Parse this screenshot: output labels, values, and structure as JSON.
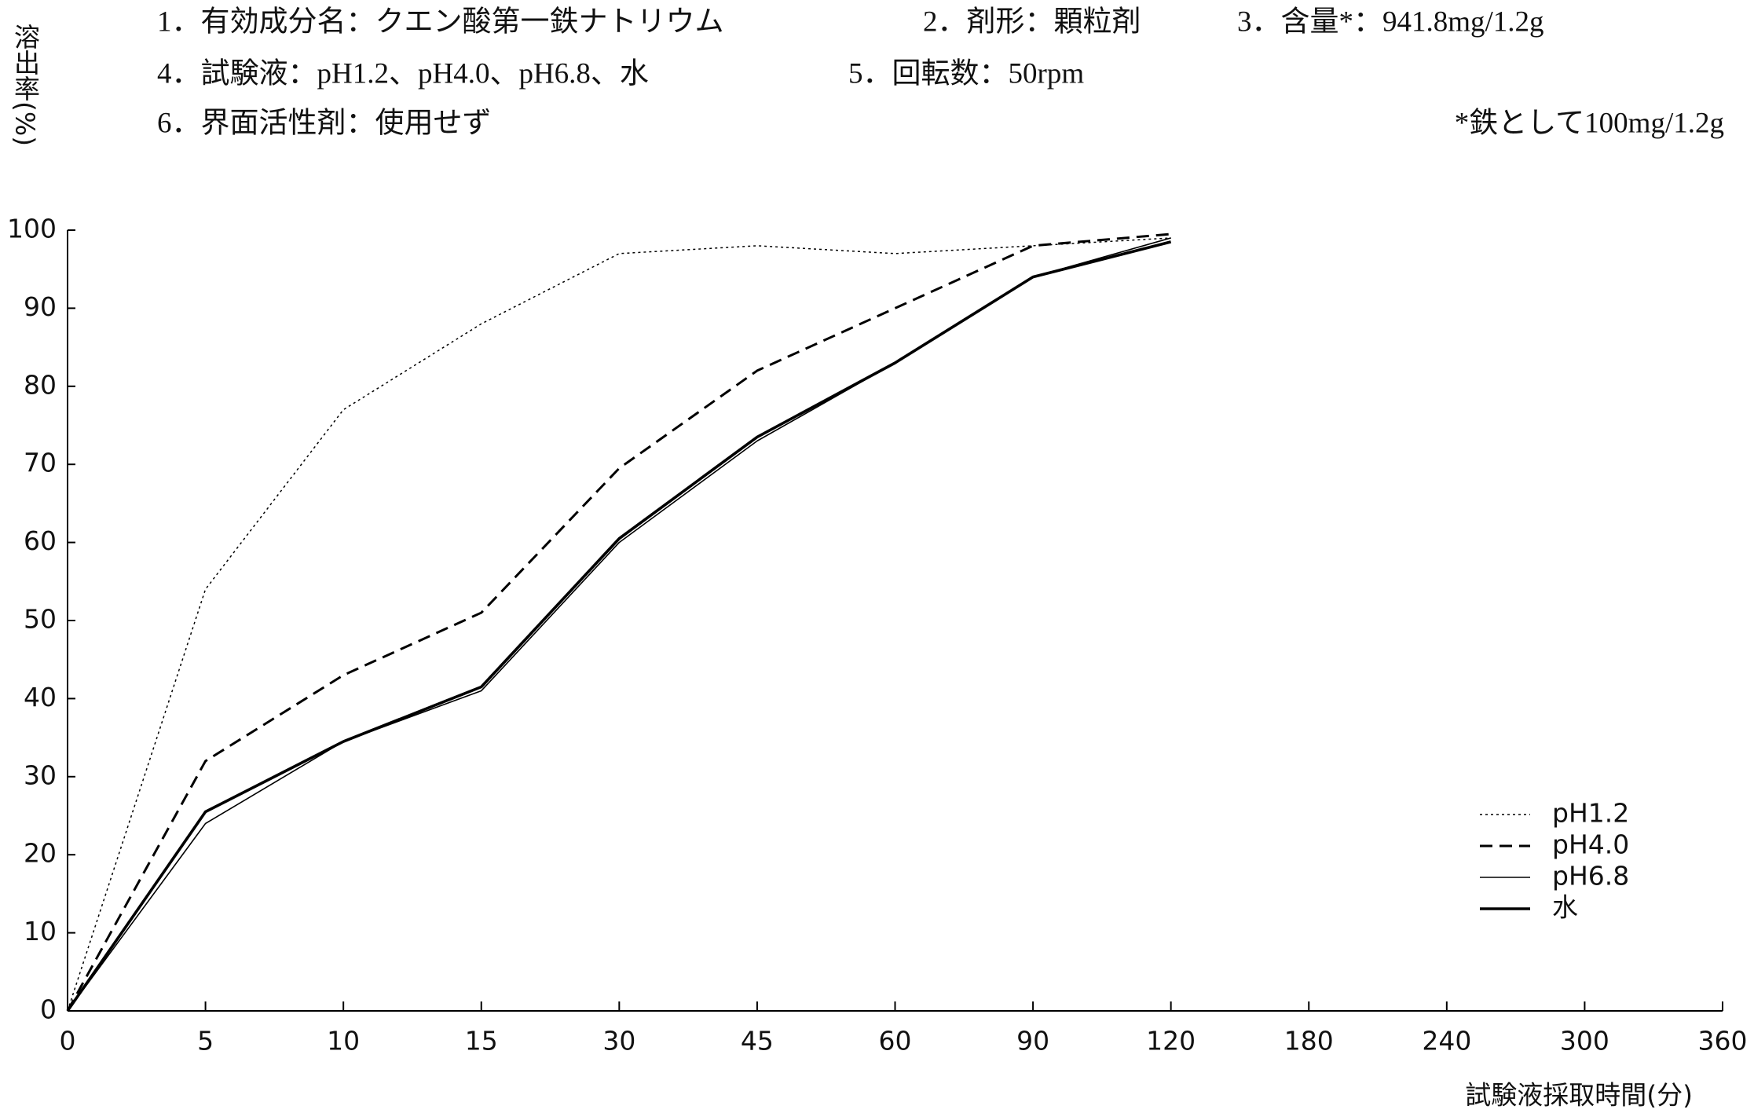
{
  "chart_data": {
    "type": "line",
    "annotations": [
      "1．有効成分名：クエン酸第一鉄ナトリウム",
      "2．剤形：顆粒剤",
      "3．含量*：941.8mg/1.2g",
      "4．試験液：pH1.2、pH4.0、pH6.8、水",
      "5．回転数：50rpm",
      "6．界面活性剤：使用せず",
      "*鉄として100mg/1.2g"
    ],
    "y_label": "溶出率(%)",
    "x_label": "試験液採取時間(分)",
    "categories": [
      "0",
      "5",
      "10",
      "15",
      "30",
      "45",
      "60",
      "90",
      "120",
      "180",
      "240",
      "300",
      "360"
    ],
    "series": [
      {
        "name": "pH1.2",
        "color": "#000000",
        "line_style": "dotted",
        "values": [
          0,
          54,
          77,
          88,
          97,
          98,
          97,
          98,
          99,
          null,
          null,
          null,
          null
        ]
      },
      {
        "name": "pH4.0",
        "color": "#000000",
        "line_style": "dashed",
        "values": [
          0,
          32,
          43,
          51,
          69.5,
          82,
          90,
          98,
          99.5,
          null,
          null,
          null,
          null
        ]
      },
      {
        "name": "pH6.8",
        "color": "#000000",
        "line_style": "thin",
        "values": [
          0,
          24,
          34.5,
          41,
          60,
          73,
          83,
          94,
          99,
          null,
          null,
          null,
          null
        ]
      },
      {
        "name": "水",
        "color": "#000000",
        "line_style": "thick",
        "values": [
          0,
          25.5,
          34.5,
          41.5,
          60.5,
          73.5,
          83,
          94,
          98.5,
          null,
          null,
          null,
          null
        ]
      }
    ],
    "ylim": [
      0,
      100
    ],
    "yticks": [
      0,
      10,
      20,
      30,
      40,
      50,
      60,
      70,
      80,
      90,
      100
    ],
    "legend": "lower right"
  }
}
